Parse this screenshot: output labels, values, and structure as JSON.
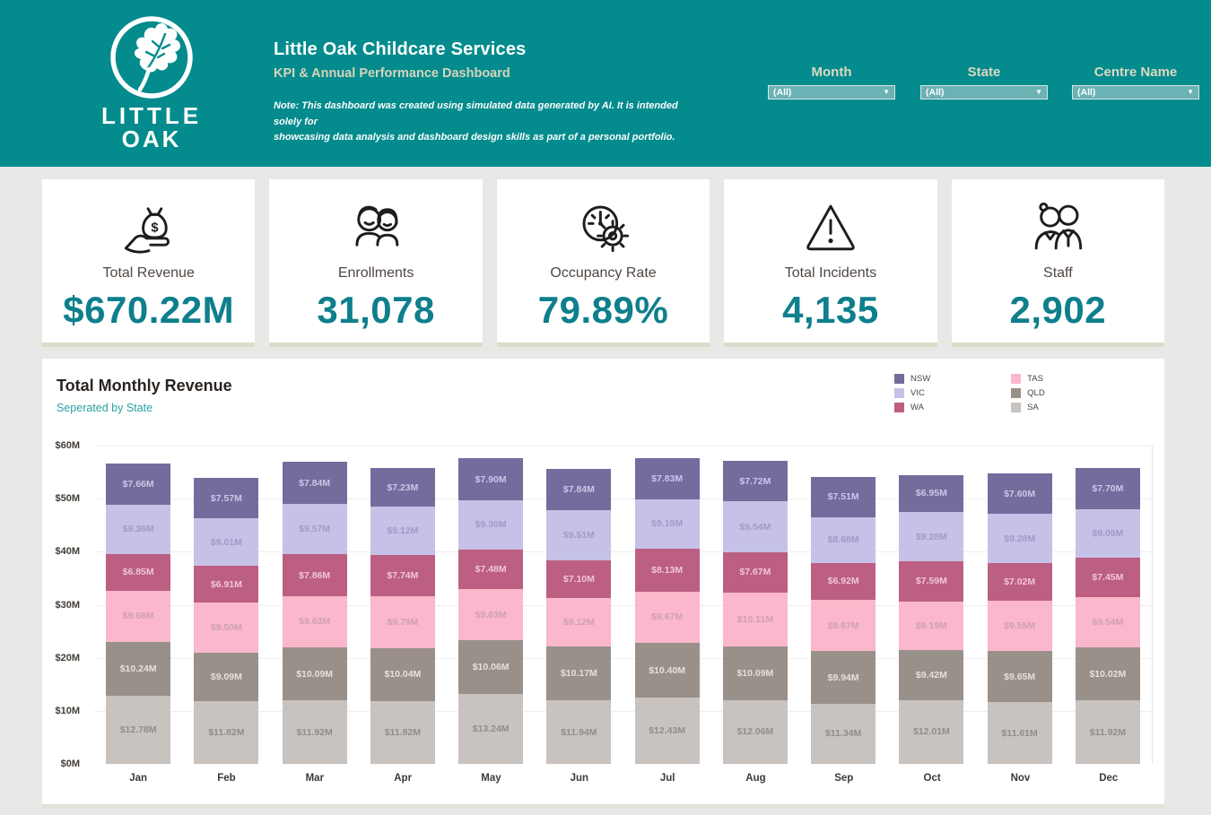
{
  "header": {
    "background": "#038b8d",
    "logo": {
      "icon": "oak-leaf-icon",
      "line1": "LITTLE",
      "line2": "OAK"
    },
    "title": "Little Oak Childcare Services",
    "subtitle": "KPI & Annual Performance Dashboard",
    "note_line1": "Note: This dashboard was created using simulated data generated by AI. It is intended solely for",
    "note_line2": "showcasing data analysis and dashboard design skills as part of a personal portfolio.",
    "filters": [
      {
        "label": "Month",
        "value": "(All)"
      },
      {
        "label": "State",
        "value": "(All)"
      },
      {
        "label": "Centre Name",
        "value": "(All)"
      }
    ]
  },
  "kpis": [
    {
      "icon": "money-bag-hand-icon",
      "label": "Total Revenue",
      "value": "$670.22M"
    },
    {
      "icon": "children-icon",
      "label": "Enrollments",
      "value": "31,078"
    },
    {
      "icon": "gauge-gear-icon",
      "label": "Occupancy Rate",
      "value": "79.89%"
    },
    {
      "icon": "warning-triangle-icon",
      "label": "Total Incidents",
      "value": "4,135"
    },
    {
      "icon": "staff-people-icon",
      "label": "Staff",
      "value": "2,902"
    }
  ],
  "chart": {
    "title": "Total Monthly Revenue",
    "subtitle": "Seperated by State"
  },
  "chart_data": {
    "type": "bar",
    "stacked": true,
    "title": "Total Monthly Revenue",
    "subtitle": "Seperated by State",
    "categories": [
      "Jan",
      "Feb",
      "Mar",
      "Apr",
      "May",
      "Jun",
      "Jul",
      "Aug",
      "Sep",
      "Oct",
      "Nov",
      "Dec"
    ],
    "series_bottom_to_top": true,
    "series": [
      {
        "name": "SA",
        "color": "#c8c3bf",
        "label_color": "#918d89",
        "values": [
          12.78,
          11.82,
          11.92,
          11.82,
          13.24,
          11.94,
          12.43,
          12.06,
          11.34,
          12.01,
          11.61,
          11.92
        ]
      },
      {
        "name": "QLD",
        "color": "#99908a",
        "label_color": "#e6e0da",
        "values": [
          10.24,
          9.09,
          10.09,
          10.04,
          10.06,
          10.17,
          10.4,
          10.09,
          9.94,
          9.42,
          9.65,
          10.02
        ]
      },
      {
        "name": "TAS",
        "color": "#fbb7cb",
        "label_color": "#cfa0b3",
        "values": [
          9.66,
          9.5,
          9.63,
          9.79,
          9.63,
          9.12,
          9.67,
          10.11,
          9.67,
          9.19,
          9.55,
          9.54
        ]
      },
      {
        "name": "WA",
        "color": "#bc5f82",
        "label_color": "#f0c6d5",
        "values": [
          6.85,
          6.91,
          7.86,
          7.74,
          7.48,
          7.1,
          8.13,
          7.67,
          6.92,
          7.59,
          7.02,
          7.45
        ]
      },
      {
        "name": "VIC",
        "color": "#c6c1e6",
        "label_color": "#a19aca",
        "values": [
          9.36,
          9.01,
          9.57,
          9.12,
          9.3,
          9.51,
          9.19,
          9.54,
          8.68,
          9.28,
          9.28,
          9.09
        ]
      },
      {
        "name": "NSW",
        "color": "#756b9d",
        "label_color": "#cdc6e8",
        "values": [
          7.66,
          7.57,
          7.84,
          7.23,
          7.9,
          7.84,
          7.83,
          7.72,
          7.51,
          6.95,
          7.6,
          7.7
        ]
      }
    ],
    "legend_columns": [
      [
        "NSW",
        "VIC",
        "WA"
      ],
      [
        "TAS",
        "QLD",
        "SA"
      ]
    ],
    "y_ticks": [
      {
        "label": "$0M",
        "value": 0
      },
      {
        "label": "$10M",
        "value": 10
      },
      {
        "label": "$20M",
        "value": 20
      },
      {
        "label": "$30M",
        "value": 30
      },
      {
        "label": "$40M",
        "value": 40
      },
      {
        "label": "$50M",
        "value": 50
      },
      {
        "label": "$60M",
        "value": 60
      }
    ],
    "ylim": [
      0,
      60
    ],
    "value_prefix": "$",
    "value_suffix": "M",
    "grid": true,
    "legend_position": "top-right"
  }
}
